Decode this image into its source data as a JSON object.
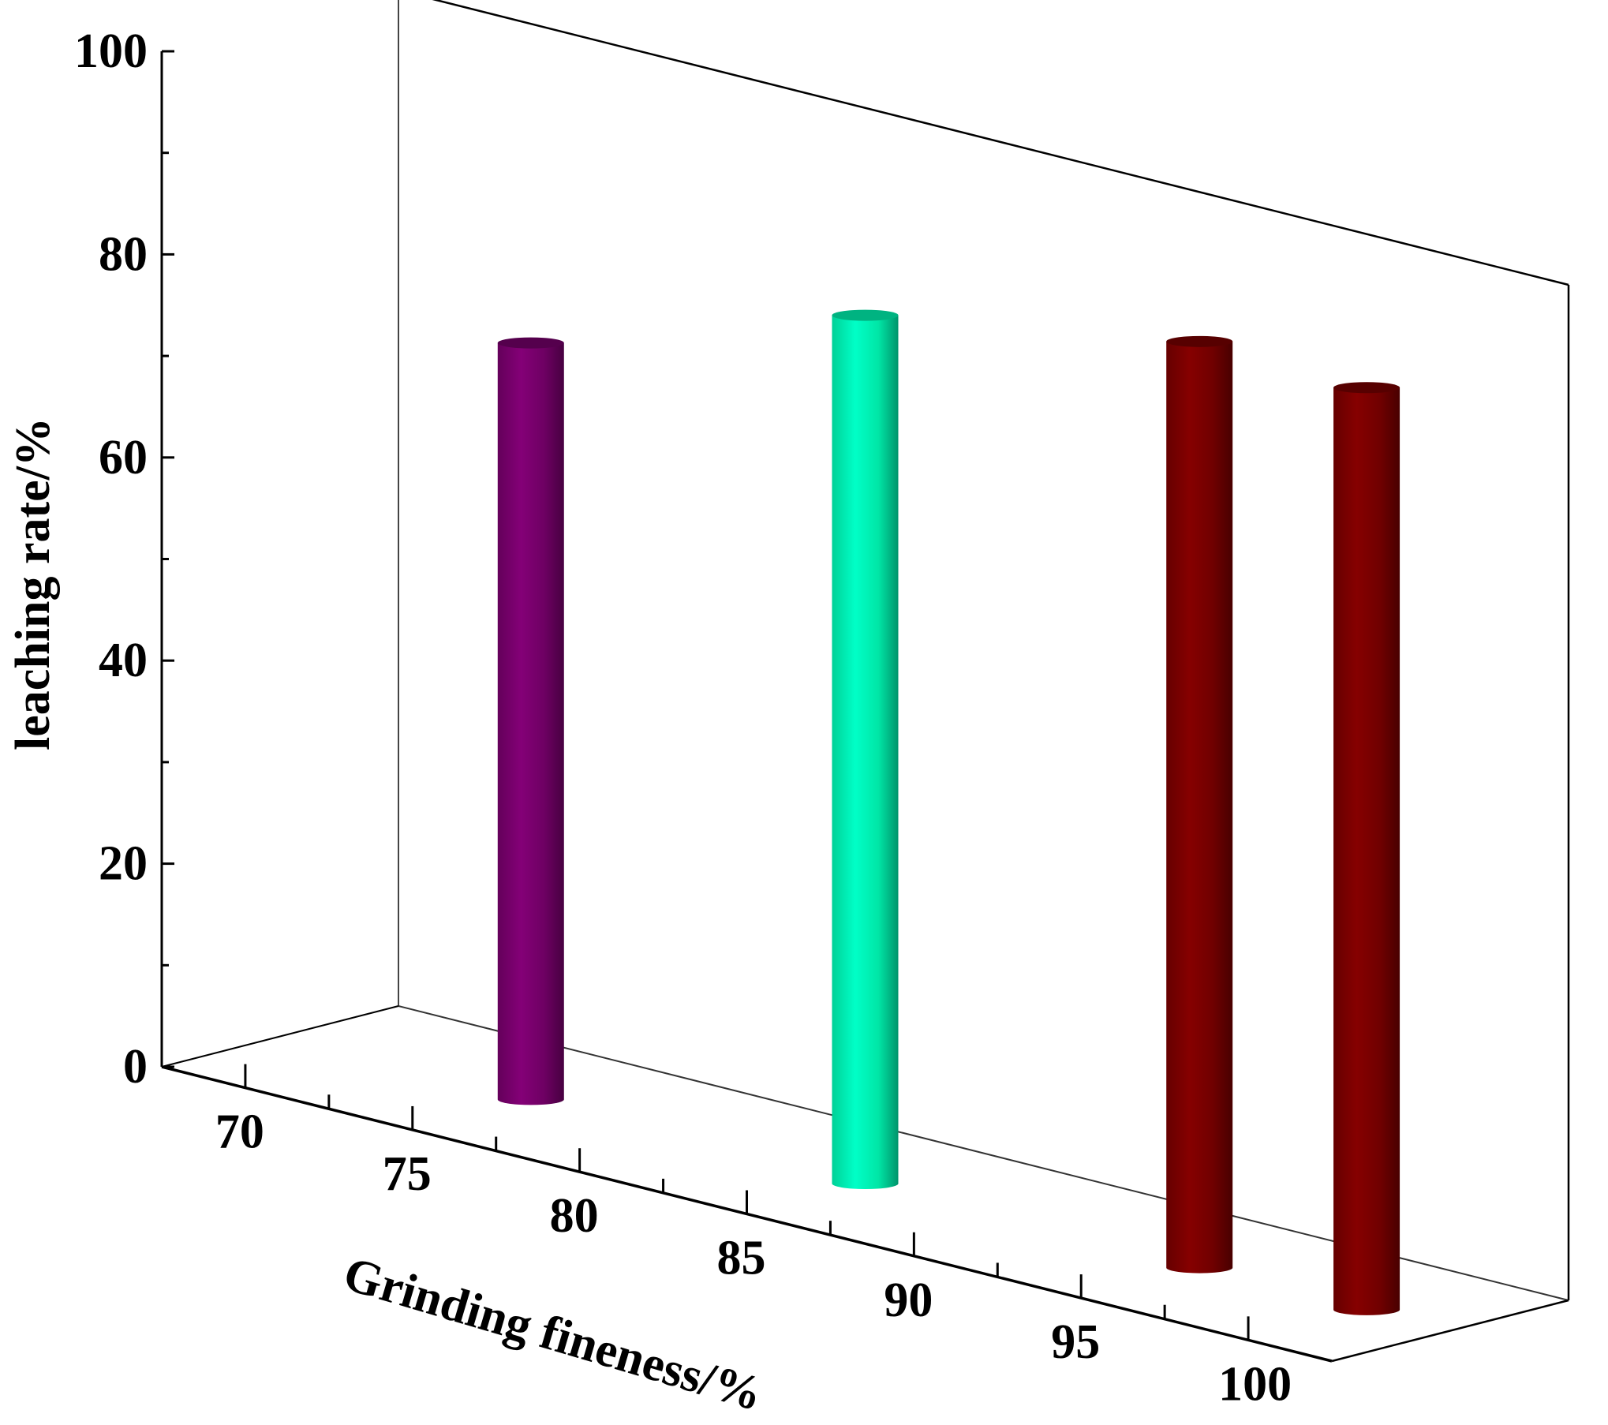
{
  "chart_data": {
    "type": "bar",
    "style": "3d-cylinder",
    "xlabel": "Grinding fineness/%",
    "ylabel": "leaching rate/%",
    "title": "",
    "ylim": [
      0,
      100
    ],
    "yticks": [
      "0",
      "20",
      "40",
      "60",
      "80",
      "100"
    ],
    "xticks": [
      "70",
      "75",
      "80",
      "85",
      "90",
      "95",
      "100"
    ],
    "x": [
      75,
      85,
      95,
      100
    ],
    "values": [
      74.5,
      85.5,
      91.2,
      90.8
    ],
    "colors": [
      "#7a006e",
      "#00ffb8",
      "#7c0000",
      "#7c0000"
    ],
    "grid": false,
    "legend": "none"
  }
}
